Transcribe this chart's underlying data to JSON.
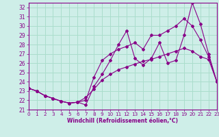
{
  "background_color": "#ceeee8",
  "line_color": "#880088",
  "grid_color": "#aaddcc",
  "xlabel": "Windchill (Refroidissement éolien,°C)",
  "x_values": [
    0,
    1,
    2,
    3,
    4,
    5,
    6,
    7,
    8,
    9,
    10,
    11,
    12,
    13,
    14,
    15,
    16,
    17,
    18,
    19,
    20,
    21,
    22,
    23
  ],
  "line1_y": [
    23.3,
    23.0,
    22.5,
    22.2,
    21.9,
    21.7,
    21.8,
    22.3,
    23.2,
    24.2,
    24.8,
    25.3,
    25.6,
    25.9,
    26.2,
    26.4,
    26.7,
    27.0,
    27.3,
    27.6,
    27.3,
    26.7,
    26.4,
    24.0
  ],
  "line2_y": [
    23.3,
    23.0,
    22.5,
    22.2,
    21.9,
    21.7,
    21.8,
    21.5,
    23.5,
    24.8,
    26.3,
    28.0,
    29.5,
    26.5,
    25.8,
    26.5,
    28.2,
    26.0,
    26.3,
    29.0,
    32.5,
    30.2,
    27.0,
    24.0
  ],
  "line3_y": [
    23.3,
    23.0,
    22.5,
    22.2,
    21.9,
    21.7,
    21.8,
    22.0,
    24.5,
    26.3,
    27.0,
    27.5,
    27.8,
    28.2,
    27.5,
    29.0,
    29.0,
    29.5,
    30.0,
    30.8,
    30.0,
    28.5,
    26.7,
    24.0
  ],
  "ylim": [
    21,
    32.5
  ],
  "yticks": [
    21,
    22,
    23,
    24,
    25,
    26,
    27,
    28,
    29,
    30,
    31,
    32
  ],
  "xticks": [
    0,
    1,
    2,
    3,
    4,
    5,
    6,
    7,
    8,
    9,
    10,
    11,
    12,
    13,
    14,
    15,
    16,
    17,
    18,
    19,
    20,
    21,
    22,
    23
  ]
}
